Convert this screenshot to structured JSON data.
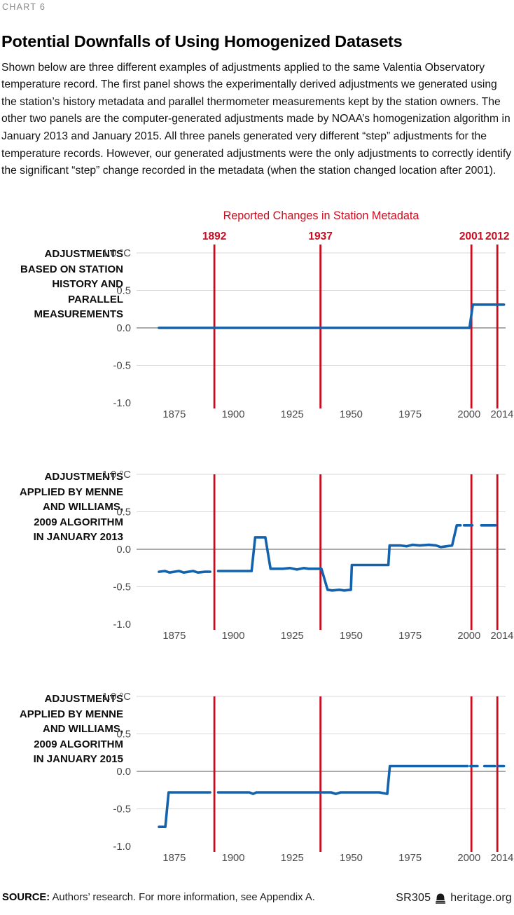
{
  "page": {
    "kicker": "CHART 6",
    "title": "Potential Downfalls of Using Homogenized Datasets",
    "description": "Shown below are three different examples of adjustments applied to the same Valentia Observatory temperature record. The first panel shows the experimentally derived adjustments we generated using the station’s history metadata and parallel thermometer measurements kept by the station owners. The other two panels are the computer-generated adjustments made by NOAA’s homogenization algorithm in January 2013 and January 2015. All three panels generated very different “step” adjustments for the temperature records. However, our generated adjustments were the only adjustments to correctly identify the significant “step” change recorded in the metadata (when the station changed location after 2001)."
  },
  "footer": {
    "source_label": "SOURCE:",
    "source_text": " Authors’ research. For more information, see Appendix A.",
    "report_id": "SR305",
    "site": "heritage.org",
    "bell_icon": "heritage-bell-icon"
  },
  "colors": {
    "accent_red": "#cb0c1f",
    "line_blue": "#1362ae",
    "grid": "#d9d9d9",
    "zero_line": "#8f8f8f",
    "tick_text": "#4a4a4a",
    "kicker_gray": "#878787"
  },
  "chart_data": {
    "type": "line",
    "unit": "°C",
    "x_range": [
      1859,
      2015.5
    ],
    "y_range": [
      -1.0,
      1.0
    ],
    "x_ticks": [
      1875,
      1900,
      1925,
      1950,
      1975,
      2000,
      2014
    ],
    "y_ticks": [
      {
        "value": 1.0,
        "label": "1.0 °C"
      },
      {
        "value": 0.5,
        "label": "0.5"
      },
      {
        "value": 0.0,
        "label": "0.0"
      },
      {
        "value": -0.5,
        "label": "-0.5"
      },
      {
        "value": -1.0,
        "label": "-1.0"
      }
    ],
    "grid_values": [
      1.0,
      0.5,
      0.0,
      -0.5
    ],
    "metadata_header": "Reported Changes in Station Metadata",
    "metadata_years": [
      1892,
      1937,
      2001,
      2012
    ],
    "panels": [
      {
        "label": "ADJUSTMENTS BASED ON STATION HISTORY AND PARALLEL MEASUREMENTS",
        "label_lines": [
          "ADJUSTMENTS",
          "BASED ON STATION",
          "HISTORY AND",
          "PARALLEL",
          "MEASUREMENTS"
        ],
        "red_lines_overflow_top": true,
        "segments": [
          [
            [
              1868.5,
              0.0
            ],
            [
              2000.2,
              0.0
            ],
            [
              2001.6,
              0.31
            ],
            [
              2014.8,
              0.31
            ]
          ]
        ]
      },
      {
        "label": "ADJUSTMENTS APPLIED BY MENNE AND WILLIAMS, 2009 ALGORITHM IN JANUARY 2013",
        "label_lines": [
          "ADJUSTMENTS",
          "APPLIED BY MENNE",
          "AND WILLIAMS,",
          "2009 ALGORITHM",
          "IN JANUARY 2013"
        ],
        "red_lines_overflow_top": false,
        "segments": [
          [
            [
              1868.5,
              -0.3
            ],
            [
              1871,
              -0.29
            ],
            [
              1873,
              -0.31
            ],
            [
              1877,
              -0.29
            ],
            [
              1879,
              -0.31
            ],
            [
              1883,
              -0.29
            ],
            [
              1885,
              -0.31
            ],
            [
              1888,
              -0.3
            ],
            [
              1890.2,
              -0.3
            ]
          ],
          [
            [
              1893.6,
              -0.29
            ],
            [
              1907.8,
              -0.29
            ],
            [
              1909.3,
              0.16
            ],
            [
              1913.6,
              0.16
            ],
            [
              1915.8,
              -0.26
            ],
            [
              1921,
              -0.26
            ],
            [
              1924,
              -0.25
            ],
            [
              1927,
              -0.27
            ],
            [
              1930,
              -0.25
            ],
            [
              1932,
              -0.26
            ],
            [
              1937.4,
              -0.26
            ],
            [
              1940,
              -0.54
            ],
            [
              1942,
              -0.55
            ],
            [
              1945,
              -0.54
            ],
            [
              1947,
              -0.55
            ],
            [
              1949.9,
              -0.54
            ],
            [
              1950.3,
              -0.21
            ],
            [
              1965.8,
              -0.21
            ],
            [
              1966.3,
              0.05
            ],
            [
              1971,
              0.05
            ],
            [
              1973.5,
              0.04
            ],
            [
              1976,
              0.06
            ],
            [
              1979,
              0.05
            ],
            [
              1983,
              0.06
            ],
            [
              1986,
              0.05
            ],
            [
              1988,
              0.03
            ],
            [
              1990.5,
              0.04
            ],
            [
              1992.8,
              0.05
            ],
            [
              1994.8,
              0.32
            ],
            [
              1996.4,
              0.32
            ]
          ],
          [
            [
              1997.9,
              0.32
            ],
            [
              2001.4,
              0.32
            ]
          ],
          [
            [
              2005.2,
              0.32
            ],
            [
              2011.2,
              0.32
            ]
          ]
        ]
      },
      {
        "label": "ADJUSTMENTS APPLIED BY MENNE AND WILLIAMS, 2009 ALGORITHM IN JANUARY 2015",
        "label_lines": [
          "ADJUSTMENTS",
          "APPLIED BY MENNE",
          "AND WILLIAMS,",
          "2009 ALGORITHM",
          "IN JANUARY 2015"
        ],
        "red_lines_overflow_top": false,
        "segments": [
          [
            [
              1868.5,
              -0.74
            ],
            [
              1871.2,
              -0.74
            ],
            [
              1872.6,
              -0.28
            ],
            [
              1890.2,
              -0.28
            ]
          ],
          [
            [
              1893.6,
              -0.28
            ],
            [
              1906.8,
              -0.28
            ],
            [
              1908.4,
              -0.3
            ],
            [
              1909.8,
              -0.28
            ],
            [
              1941.5,
              -0.28
            ],
            [
              1943.5,
              -0.3
            ],
            [
              1945.5,
              -0.28
            ],
            [
              1962,
              -0.28
            ],
            [
              1965.3,
              -0.3
            ],
            [
              1966.4,
              0.07
            ],
            [
              1999.4,
              0.07
            ]
          ],
          [
            [
              2000.6,
              0.07
            ],
            [
              2003.6,
              0.07
            ]
          ],
          [
            [
              2006.5,
              0.07
            ],
            [
              2011.0,
              0.07
            ]
          ],
          [
            [
              2012.5,
              0.07
            ],
            [
              2014.8,
              0.07
            ]
          ]
        ]
      }
    ]
  }
}
